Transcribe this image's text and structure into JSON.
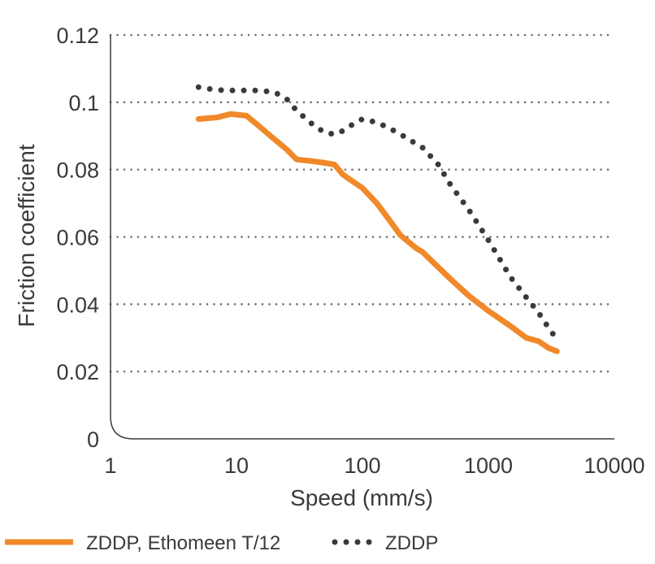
{
  "chart_data": {
    "type": "line",
    "title": "",
    "xlabel": "Speed (mm/s)",
    "ylabel": "Friction coefficient",
    "x_scale": "log",
    "xlim": [
      1,
      10000
    ],
    "ylim": [
      0,
      0.12
    ],
    "x_ticks": [
      1,
      10,
      100,
      1000,
      10000
    ],
    "x_tick_labels": [
      "1",
      "10",
      "100",
      "1000",
      "10000"
    ],
    "y_ticks": [
      0,
      0.02,
      0.04,
      0.06,
      0.08,
      0.1,
      0.12
    ],
    "y_tick_labels": [
      "0",
      "0.02",
      "0.04",
      "0.06",
      "0.08",
      "0.1",
      "0.12"
    ],
    "grid": "horizontal dotted",
    "legend_position": "bottom",
    "series": [
      {
        "name": "ZDDP, Ethomeen T/12",
        "color": "#f0892a",
        "style": "solid",
        "x": [
          5,
          7,
          9,
          12,
          15,
          20,
          25,
          30,
          40,
          50,
          60,
          70,
          80,
          100,
          130,
          160,
          200,
          270,
          300,
          400,
          500,
          700,
          1000,
          1500,
          2000,
          2500,
          3000,
          3500
        ],
        "y": [
          0.095,
          0.0955,
          0.0965,
          0.096,
          0.093,
          0.089,
          0.086,
          0.083,
          0.0825,
          0.082,
          0.0815,
          0.0785,
          0.077,
          0.0745,
          0.07,
          0.0655,
          0.0605,
          0.0565,
          0.0555,
          0.051,
          0.0475,
          0.0425,
          0.038,
          0.0335,
          0.03,
          0.029,
          0.027,
          0.026
        ]
      },
      {
        "name": "ZDDP",
        "color": "#3a3a3a",
        "style": "dotted",
        "x": [
          5,
          6,
          8,
          10,
          15,
          20,
          25,
          30,
          40,
          50,
          60,
          70,
          80,
          100,
          130,
          160,
          200,
          300,
          400,
          500,
          700,
          1000,
          1500,
          2000,
          2500,
          3000,
          3500
        ],
        "y": [
          0.1045,
          0.104,
          0.1035,
          0.1035,
          0.1035,
          0.103,
          0.101,
          0.0975,
          0.0935,
          0.091,
          0.0905,
          0.0915,
          0.093,
          0.095,
          0.094,
          0.0925,
          0.0905,
          0.0865,
          0.0815,
          0.0755,
          0.068,
          0.059,
          0.048,
          0.042,
          0.0375,
          0.033,
          0.0295
        ]
      }
    ]
  }
}
